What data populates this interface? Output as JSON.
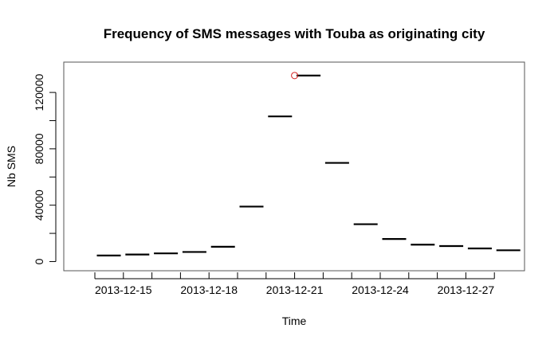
{
  "chart_data": {
    "type": "line",
    "title": "Frequency of SMS messages with Touba as originating city",
    "xlabel": "Time",
    "ylabel": "Nb SMS",
    "x": [
      "2013-12-14",
      "2013-12-15",
      "2013-12-16",
      "2013-12-17",
      "2013-12-18",
      "2013-12-19",
      "2013-12-20",
      "2013-12-21",
      "2013-12-22",
      "2013-12-23",
      "2013-12-24",
      "2013-12-25",
      "2013-12-26",
      "2013-12-27",
      "2013-12-28"
    ],
    "values": [
      4300,
      5000,
      5800,
      6800,
      10500,
      39000,
      103000,
      132000,
      70000,
      26500,
      16000,
      12000,
      11000,
      9300,
      8000
    ],
    "x_tick_labels": [
      "2013-12-15",
      "2013-12-18",
      "2013-12-21",
      "2013-12-24",
      "2013-12-27"
    ],
    "y_ticks": [
      0,
      40000,
      80000,
      120000
    ],
    "ylim": [
      -2000,
      137000
    ],
    "highlight": {
      "x": "2013-12-21",
      "value": 132000,
      "color": "#d42020"
    },
    "grid": false,
    "legend": "none"
  }
}
